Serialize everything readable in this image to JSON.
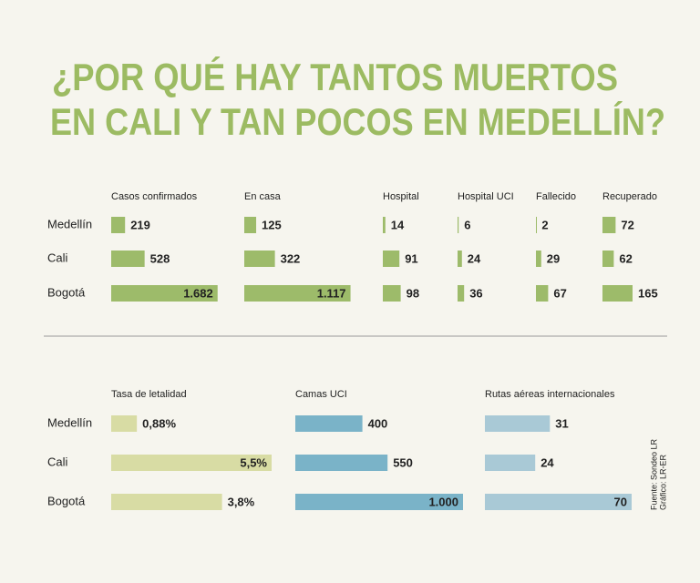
{
  "title": [
    "¿POR QUÉ HAY TANTOS MUERTOS",
    "EN CALI Y TAN POCOS EN MEDELLÍN?"
  ],
  "source": [
    "Fuente: Sondeo LR",
    "Gráfico: LR-ER"
  ],
  "chart_data": [
    {
      "type": "bar",
      "title": "Casos confirmados",
      "categories": [
        "Medellín",
        "Cali",
        "Bogotá"
      ],
      "values": [
        219,
        528,
        1682
      ],
      "value_labels": [
        "219",
        "528",
        "1.682"
      ],
      "xlim": [
        0,
        1700
      ],
      "color": "#9dbb6a"
    },
    {
      "type": "bar",
      "title": "En casa",
      "values": [
        125,
        322,
        1117
      ],
      "value_labels": [
        "125",
        "322",
        "1.117"
      ],
      "xlim": [
        0,
        1150
      ],
      "color": "#9dbb6a"
    },
    {
      "type": "bar",
      "title": "Hospital",
      "values": [
        14,
        91,
        98
      ],
      "xlim": [
        0,
        500
      ],
      "color": "#9dbb6a"
    },
    {
      "type": "bar",
      "title": "Hospital UCI",
      "values": [
        6,
        24,
        36
      ],
      "xlim": [
        0,
        500
      ],
      "color": "#9dbb6a"
    },
    {
      "type": "bar",
      "title": "Fallecido",
      "values": [
        2,
        29,
        67
      ],
      "xlim": [
        0,
        500
      ],
      "color": "#9dbb6a"
    },
    {
      "type": "bar",
      "title": "Recuperado",
      "values": [
        72,
        62,
        165
      ],
      "xlim": [
        0,
        500
      ],
      "color": "#9dbb6a"
    },
    {
      "type": "bar",
      "title": "Tasa de letalidad",
      "categories": [
        "Medellín",
        "Cali",
        "Bogotá"
      ],
      "values": [
        0.88,
        5.5,
        3.8
      ],
      "value_labels": [
        "0,88%",
        "5,5%",
        "3,8%"
      ],
      "xlim": [
        0,
        5.5
      ],
      "color": "#d8dca4"
    },
    {
      "type": "bar",
      "title": "Camas UCI",
      "values": [
        400,
        550,
        1000
      ],
      "value_labels": [
        "400",
        "550",
        "1.000"
      ],
      "xlim": [
        0,
        1000
      ],
      "color": "#7ab3c8"
    },
    {
      "type": "bar",
      "title": "Rutas aéreas internacionales",
      "values": [
        31,
        24,
        70
      ],
      "xlim": [
        0,
        70
      ],
      "color": "#a9c9d6"
    }
  ]
}
